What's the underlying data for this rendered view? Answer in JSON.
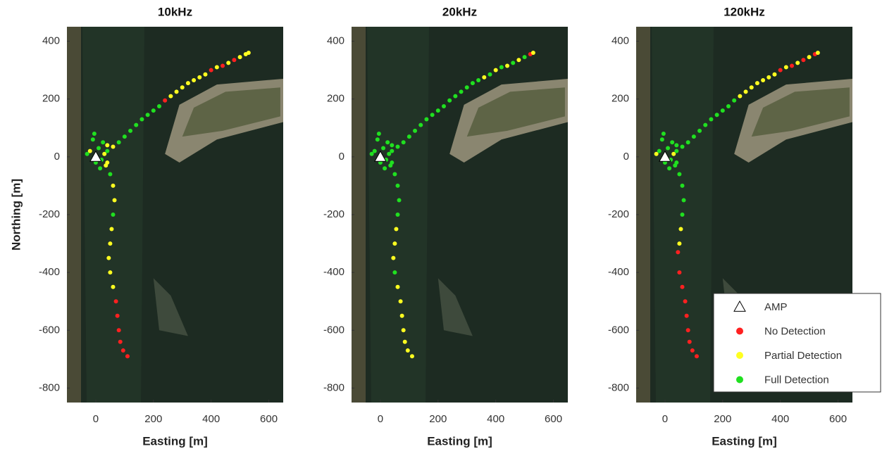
{
  "chart_data": [
    {
      "type": "scatter",
      "title": "10kHz",
      "xlabel": "Easting [m]",
      "ylabel": "Northing [m]",
      "xlim": [
        -100,
        650
      ],
      "ylim": [
        -850,
        450
      ],
      "xticks": [
        0,
        200,
        400,
        600
      ],
      "yticks": [
        -800,
        -600,
        -400,
        -200,
        0,
        200,
        400
      ],
      "series": [
        {
          "marker": "triangle",
          "color": "#ffffff",
          "x": [
            0
          ],
          "y": [
            0
          ]
        },
        {
          "marker": "circle",
          "color": "#ff2020",
          "x": [
            400,
            440,
            480,
            240,
            70,
            75,
            80,
            85,
            95,
            110
          ],
          "y": [
            300,
            315,
            335,
            195,
            -500,
            -550,
            -600,
            -640,
            -670,
            -690
          ]
        },
        {
          "marker": "circle",
          "color": "#ffff20",
          "x": [
            260,
            280,
            300,
            320,
            340,
            360,
            380,
            420,
            460,
            500,
            520,
            530,
            60,
            40,
            60,
            65,
            55,
            50,
            45,
            50,
            60,
            -20,
            30,
            40,
            35
          ],
          "y": [
            210,
            225,
            240,
            255,
            265,
            275,
            285,
            310,
            325,
            345,
            355,
            360,
            35,
            -20,
            -100,
            -150,
            -250,
            -300,
            -350,
            -400,
            -450,
            20,
            10,
            40,
            -30
          ]
        },
        {
          "marker": "circle",
          "color": "#20e020",
          "x": [
            40,
            80,
            100,
            120,
            140,
            160,
            180,
            200,
            220,
            50,
            60,
            -10,
            10,
            20,
            0,
            -30,
            25,
            15,
            -5
          ],
          "y": [
            20,
            50,
            70,
            90,
            110,
            130,
            145,
            160,
            175,
            -60,
            -200,
            60,
            30,
            -10,
            -20,
            10,
            50,
            -40,
            80
          ]
        }
      ]
    },
    {
      "type": "scatter",
      "title": "20kHz",
      "xlabel": "Easting [m]",
      "xlim": [
        -100,
        650
      ],
      "ylim": [
        -850,
        450
      ],
      "xticks": [
        0,
        200,
        400,
        600
      ],
      "yticks": [
        -800,
        -600,
        -400,
        -200,
        0,
        200,
        400
      ],
      "series": [
        {
          "marker": "triangle",
          "color": "#ffffff",
          "x": [
            0
          ],
          "y": [
            0
          ]
        },
        {
          "marker": "circle",
          "color": "#ff2020",
          "x": [
            520
          ],
          "y": [
            355
          ]
        },
        {
          "marker": "circle",
          "color": "#ffff20",
          "x": [
            360,
            400,
            440,
            480,
            530,
            55,
            50,
            45,
            60,
            70,
            75,
            80,
            85,
            95,
            110
          ],
          "y": [
            275,
            300,
            315,
            335,
            360,
            -250,
            -300,
            -350,
            -450,
            -500,
            -550,
            -600,
            -640,
            -670,
            -690
          ]
        },
        {
          "marker": "circle",
          "color": "#20e020",
          "x": [
            40,
            60,
            80,
            100,
            120,
            140,
            160,
            180,
            200,
            220,
            240,
            260,
            280,
            300,
            320,
            340,
            380,
            420,
            460,
            500,
            40,
            50,
            60,
            65,
            60,
            50,
            -20,
            -10,
            10,
            20,
            30,
            0,
            -30,
            40,
            25,
            15,
            -5,
            35
          ],
          "y": [
            20,
            35,
            50,
            70,
            90,
            110,
            130,
            145,
            160,
            175,
            195,
            210,
            225,
            240,
            255,
            265,
            285,
            310,
            325,
            345,
            -20,
            -60,
            -100,
            -150,
            -200,
            -400,
            20,
            60,
            30,
            -10,
            10,
            -20,
            10,
            40,
            50,
            -40,
            80,
            -30
          ]
        }
      ]
    },
    {
      "type": "scatter",
      "title": "120kHz",
      "xlabel": "Easting [m]",
      "xlim": [
        -100,
        650
      ],
      "ylim": [
        -850,
        450
      ],
      "xticks": [
        0,
        200,
        400,
        600
      ],
      "yticks": [
        -800,
        -600,
        -400,
        -200,
        0,
        200,
        400
      ],
      "legend": "lower right",
      "series": [
        {
          "name": "AMP",
          "marker": "triangle",
          "color": "#ffffff",
          "x": [
            0
          ],
          "y": [
            0
          ]
        },
        {
          "name": "No Detection",
          "marker": "circle",
          "color": "#ff2020",
          "x": [
            400,
            440,
            480,
            520,
            45,
            50,
            60,
            70,
            75,
            80,
            85,
            95,
            110
          ],
          "y": [
            300,
            315,
            335,
            355,
            -330,
            -400,
            -450,
            -500,
            -550,
            -600,
            -640,
            -670,
            -690
          ]
        },
        {
          "name": "Partial Detection",
          "marker": "circle",
          "color": "#ffff20",
          "x": [
            260,
            280,
            300,
            320,
            340,
            360,
            380,
            420,
            460,
            500,
            530,
            55,
            50,
            -30,
            30
          ],
          "y": [
            210,
            225,
            240,
            255,
            265,
            275,
            285,
            310,
            325,
            345,
            360,
            -250,
            -300,
            10,
            10
          ]
        },
        {
          "name": "Full Detection",
          "marker": "circle",
          "color": "#20e020",
          "x": [
            40,
            60,
            80,
            100,
            120,
            140,
            160,
            180,
            200,
            220,
            240,
            40,
            50,
            60,
            65,
            60,
            -20,
            -10,
            10,
            20,
            0,
            40,
            25,
            15,
            -5,
            35
          ],
          "y": [
            20,
            35,
            50,
            70,
            90,
            110,
            130,
            145,
            160,
            175,
            195,
            -20,
            -60,
            -100,
            -150,
            -200,
            20,
            60,
            30,
            -10,
            -20,
            40,
            50,
            -40,
            80,
            -30
          ]
        }
      ]
    }
  ]
}
